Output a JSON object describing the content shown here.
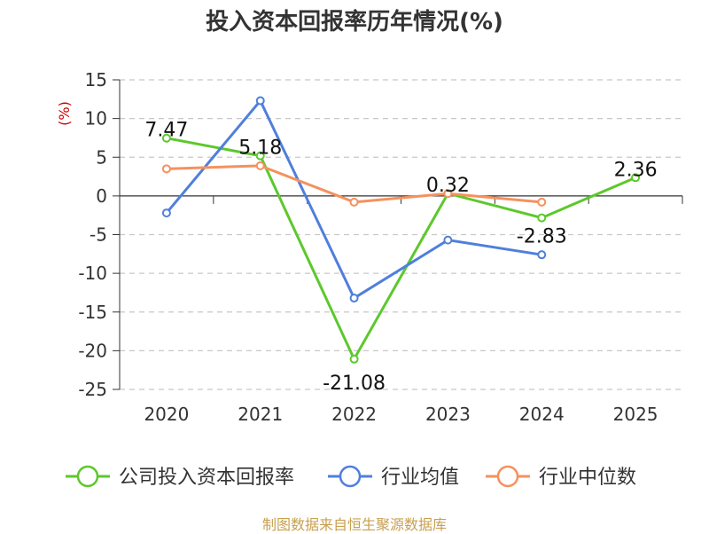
{
  "chart_data": {
    "type": "line",
    "title": "投入资本回报率历年情况(%)",
    "ylabel": "(%)",
    "xlabel": "",
    "categories": [
      "2020",
      "2021",
      "2022",
      "2023",
      "2024",
      "2025"
    ],
    "ylim": [
      -25,
      15
    ],
    "yticks": [
      15,
      10,
      5,
      0,
      -5,
      -10,
      -15,
      -20,
      -25
    ],
    "grid": true,
    "legend_position": "bottom",
    "series": [
      {
        "name": "公司投入资本回报率",
        "color": "#5cc82c",
        "values": [
          7.47,
          5.18,
          -21.08,
          0.32,
          -2.83,
          2.36
        ],
        "labels": [
          "7.47",
          "5.18",
          "-21.08",
          "0.32",
          "-2.83",
          "2.36"
        ]
      },
      {
        "name": "行业均值",
        "color": "#4f7fdc",
        "values": [
          -2.2,
          12.3,
          -13.2,
          -5.7,
          -7.6,
          null
        ]
      },
      {
        "name": "行业中位数",
        "color": "#f5915e",
        "values": [
          3.5,
          3.9,
          -0.8,
          0.3,
          -0.8,
          null
        ]
      }
    ],
    "source": "制图数据来自恒生聚源数据库"
  }
}
